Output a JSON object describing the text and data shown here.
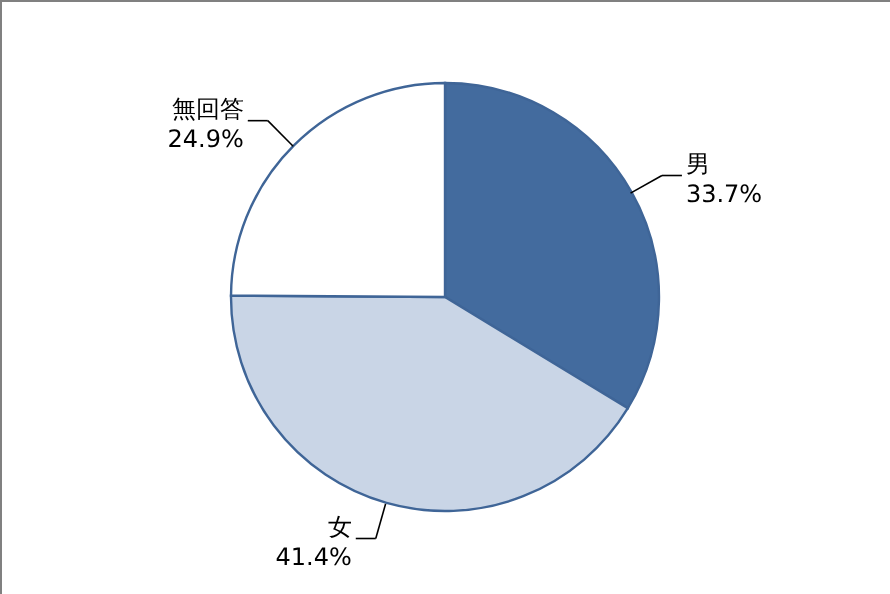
{
  "chart_data": {
    "type": "pie",
    "categories": [
      "男",
      "女",
      "無回答"
    ],
    "values": [
      33.7,
      41.4,
      24.9
    ],
    "colors": [
      "#436b9e",
      "#c9d5e6",
      "#ffffff"
    ],
    "value_labels": [
      "33.7%",
      "41.4%",
      "24.9%"
    ]
  }
}
